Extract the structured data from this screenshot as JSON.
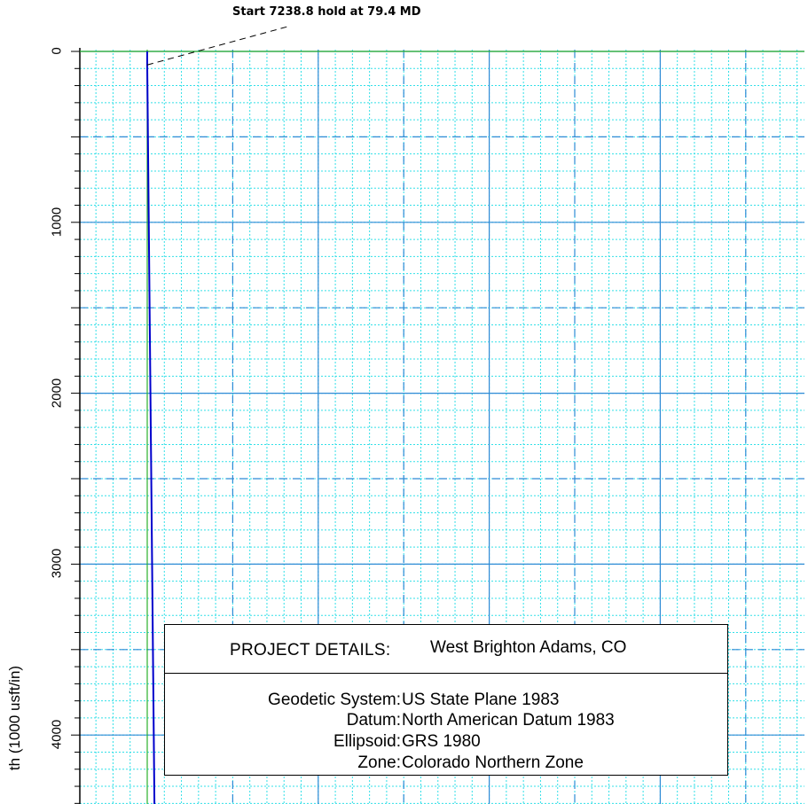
{
  "chart_data": {
    "type": "line",
    "ylabel": "th (1000 usft/in)",
    "y_ticks": [
      "0",
      "1000",
      "2000",
      "3000",
      "4000"
    ],
    "ylim": [
      0,
      4490
    ],
    "invert_y": true,
    "grid": true,
    "series": [
      {
        "color": "#0000cc",
        "points": [
          {
            "x": 0,
            "y": 0
          },
          {
            "x": 0,
            "y": 79
          },
          {
            "x": 43,
            "y": 4490
          }
        ]
      }
    ],
    "annotations": [
      {
        "text": "Start 7238.8 hold at 79.4 MD",
        "x": 0,
        "y": 79
      }
    ]
  },
  "project": {
    "heading_key": "PROJECT  DETAILS:",
    "heading_value": "West Brighton Adams, CO",
    "rows": [
      {
        "key": "Geodetic System:",
        "value": "US State Plane 1983"
      },
      {
        "key": "Datum:",
        "value": "North American Datum 1983"
      },
      {
        "key": "Ellipsoid:",
        "value": "GRS 1980"
      },
      {
        "key": "Zone:",
        "value": "Colorado Northern Zone"
      }
    ]
  },
  "colors": {
    "major_grid": "#2e8bd6",
    "minor_grid": "#33e0e8",
    "axis_green": "#2bb02b",
    "trajectory": "#0000cc"
  }
}
